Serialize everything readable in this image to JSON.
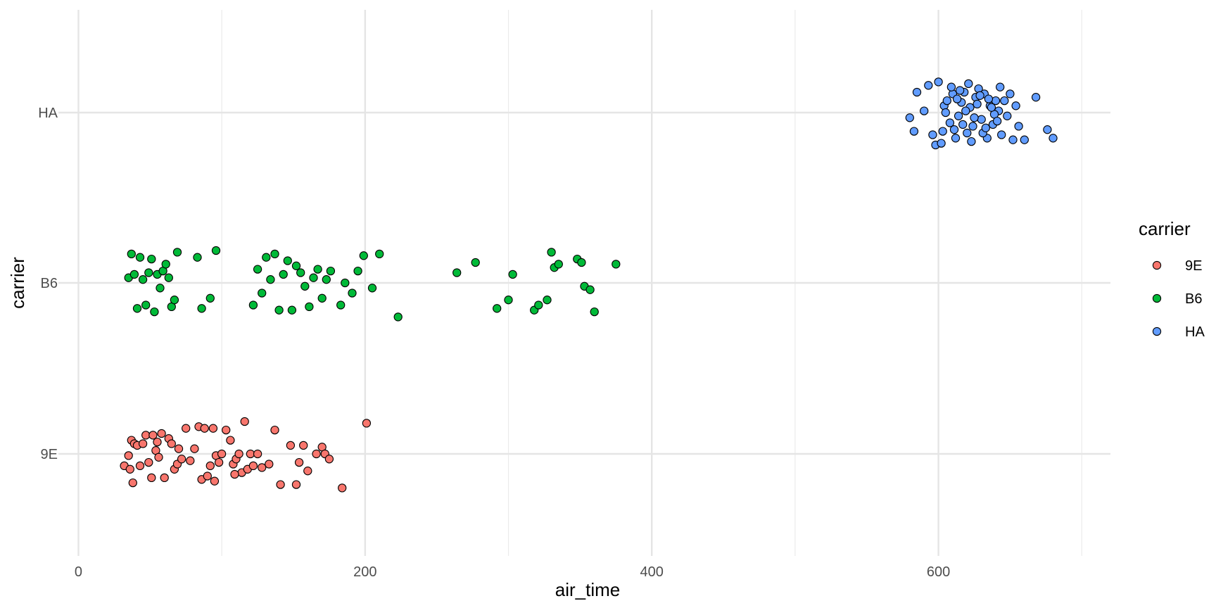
{
  "chart_data": {
    "type": "scatter",
    "xlabel": "air_time",
    "ylabel": "carrier",
    "xlim": [
      -12,
      720
    ],
    "x_ticks": [
      0,
      200,
      400,
      600
    ],
    "categories": [
      "9E",
      "B6",
      "HA"
    ],
    "grid": true,
    "legend": {
      "title": "carrier",
      "placement": "right"
    },
    "series": [
      {
        "name": "9E",
        "color": "#F8766D",
        "points": [
          [
            32,
            -0.07
          ],
          [
            35,
            -0.01
          ],
          [
            36,
            -0.09
          ],
          [
            37,
            0.08
          ],
          [
            39,
            0.06
          ],
          [
            41,
            0.05
          ],
          [
            43,
            -0.07
          ],
          [
            45,
            0.06
          ],
          [
            47,
            0.11
          ],
          [
            49,
            -0.05
          ],
          [
            51,
            -0.14
          ],
          [
            52,
            0.11
          ],
          [
            54,
            0.02
          ],
          [
            56,
            -0.02
          ],
          [
            58,
            0.12
          ],
          [
            60,
            -0.14
          ],
          [
            63,
            0.09
          ],
          [
            65,
            0.06
          ],
          [
            67,
            -0.09
          ],
          [
            69,
            -0.06
          ],
          [
            72,
            -0.03
          ],
          [
            75,
            0.15
          ],
          [
            78,
            -0.04
          ],
          [
            81,
            0.03
          ],
          [
            84,
            0.16
          ],
          [
            86,
            -0.15
          ],
          [
            88,
            0.15
          ],
          [
            90,
            -0.13
          ],
          [
            92,
            -0.07
          ],
          [
            94,
            0.15
          ],
          [
            96,
            -0.01
          ],
          [
            98,
            -0.05
          ],
          [
            100,
            0.0
          ],
          [
            103,
            0.14
          ],
          [
            106,
            0.08
          ],
          [
            108,
            -0.06
          ],
          [
            110,
            -0.03
          ],
          [
            112,
            0.0
          ],
          [
            114,
            -0.11
          ],
          [
            116,
            0.19
          ],
          [
            118,
            -0.09
          ],
          [
            120,
            0.0
          ],
          [
            122,
            -0.07
          ],
          [
            125,
            0.0
          ],
          [
            128,
            -0.08
          ],
          [
            133,
            -0.06
          ],
          [
            137,
            0.14
          ],
          [
            141,
            -0.18
          ],
          [
            148,
            0.05
          ],
          [
            152,
            -0.18
          ],
          [
            154,
            -0.05
          ],
          [
            157,
            0.05
          ],
          [
            160,
            -0.1
          ],
          [
            166,
            0.0
          ],
          [
            170,
            0.04
          ],
          [
            172,
            0.0
          ],
          [
            175,
            -0.03
          ],
          [
            184,
            -0.2
          ],
          [
            201,
            0.18
          ],
          [
            38,
            -0.17
          ],
          [
            55,
            0.07
          ],
          [
            70,
            0.03
          ],
          [
            95,
            -0.16
          ],
          [
            109,
            -0.12
          ]
        ]
      },
      {
        "name": "B6",
        "color": "#00BA38",
        "points": [
          [
            35,
            0.03
          ],
          [
            37,
            0.17
          ],
          [
            39,
            0.05
          ],
          [
            41,
            -0.15
          ],
          [
            43,
            0.15
          ],
          [
            45,
            0.02
          ],
          [
            47,
            -0.13
          ],
          [
            49,
            0.06
          ],
          [
            51,
            0.14
          ],
          [
            53,
            -0.17
          ],
          [
            55,
            0.05
          ],
          [
            57,
            -0.03
          ],
          [
            59,
            0.07
          ],
          [
            61,
            0.11
          ],
          [
            63,
            0.03
          ],
          [
            65,
            -0.14
          ],
          [
            67,
            -0.1
          ],
          [
            69,
            0.18
          ],
          [
            83,
            0.15
          ],
          [
            86,
            -0.15
          ],
          [
            92,
            -0.09
          ],
          [
            96,
            0.19
          ],
          [
            122,
            -0.13
          ],
          [
            125,
            0.08
          ],
          [
            128,
            -0.06
          ],
          [
            131,
            0.15
          ],
          [
            134,
            0.02
          ],
          [
            137,
            0.17
          ],
          [
            140,
            -0.16
          ],
          [
            143,
            0.05
          ],
          [
            146,
            0.13
          ],
          [
            149,
            -0.16
          ],
          [
            152,
            0.1
          ],
          [
            155,
            0.06
          ],
          [
            158,
            -0.02
          ],
          [
            161,
            -0.14
          ],
          [
            164,
            0.03
          ],
          [
            167,
            0.08
          ],
          [
            170,
            -0.09
          ],
          [
            173,
            0.02
          ],
          [
            176,
            0.07
          ],
          [
            183,
            -0.13
          ],
          [
            186,
            0.0
          ],
          [
            191,
            -0.06
          ],
          [
            195,
            0.07
          ],
          [
            199,
            0.16
          ],
          [
            205,
            -0.03
          ],
          [
            210,
            0.17
          ],
          [
            223,
            -0.2
          ],
          [
            264,
            0.06
          ],
          [
            277,
            0.12
          ],
          [
            292,
            -0.15
          ],
          [
            300,
            -0.1
          ],
          [
            303,
            0.05
          ],
          [
            318,
            -0.16
          ],
          [
            321,
            -0.13
          ],
          [
            327,
            -0.1
          ],
          [
            330,
            0.18
          ],
          [
            332,
            0.09
          ],
          [
            335,
            0.11
          ],
          [
            348,
            0.14
          ],
          [
            351,
            0.12
          ],
          [
            353,
            -0.02
          ],
          [
            357,
            -0.04
          ],
          [
            360,
            -0.17
          ],
          [
            375,
            0.11
          ]
        ]
      },
      {
        "name": "HA",
        "color": "#619CFF",
        "points": [
          [
            580,
            -0.03
          ],
          [
            583,
            -0.11
          ],
          [
            585,
            0.12
          ],
          [
            590,
            0.01
          ],
          [
            593,
            0.16
          ],
          [
            596,
            -0.13
          ],
          [
            598,
            -0.19
          ],
          [
            600,
            0.18
          ],
          [
            602,
            -0.18
          ],
          [
            604,
            0.04
          ],
          [
            606,
            0.07
          ],
          [
            608,
            -0.06
          ],
          [
            610,
            0.11
          ],
          [
            612,
            -0.15
          ],
          [
            614,
            -0.02
          ],
          [
            616,
            0.06
          ],
          [
            618,
            0.12
          ],
          [
            620,
            -0.12
          ],
          [
            622,
            0.03
          ],
          [
            624,
            -0.08
          ],
          [
            626,
            0.09
          ],
          [
            628,
            0.14
          ],
          [
            630,
            -0.04
          ],
          [
            632,
            0.11
          ],
          [
            634,
            -0.15
          ],
          [
            636,
            0.04
          ],
          [
            638,
            -0.07
          ],
          [
            640,
            0.07
          ],
          [
            642,
            0.01
          ],
          [
            644,
            -0.13
          ],
          [
            646,
            0.07
          ],
          [
            648,
            -0.02
          ],
          [
            650,
            0.11
          ],
          [
            652,
            -0.16
          ],
          [
            654,
            0.04
          ],
          [
            656,
            -0.08
          ],
          [
            660,
            -0.16
          ],
          [
            668,
            0.09
          ],
          [
            676,
            -0.1
          ],
          [
            680,
            -0.15
          ],
          [
            605,
            0.0
          ],
          [
            611,
            -0.1
          ],
          [
            615,
            0.13
          ],
          [
            619,
            0.01
          ],
          [
            623,
            -0.17
          ],
          [
            627,
            0.05
          ],
          [
            631,
            -0.12
          ],
          [
            635,
            0.08
          ],
          [
            639,
            -0.01
          ],
          [
            643,
            0.15
          ],
          [
            613,
            0.08
          ],
          [
            617,
            -0.07
          ],
          [
            621,
            0.17
          ],
          [
            625,
            -0.03
          ],
          [
            629,
            0.1
          ],
          [
            633,
            -0.09
          ],
          [
            637,
            0.03
          ],
          [
            641,
            -0.05
          ],
          [
            609,
            0.15
          ],
          [
            603,
            -0.11
          ]
        ]
      }
    ]
  }
}
